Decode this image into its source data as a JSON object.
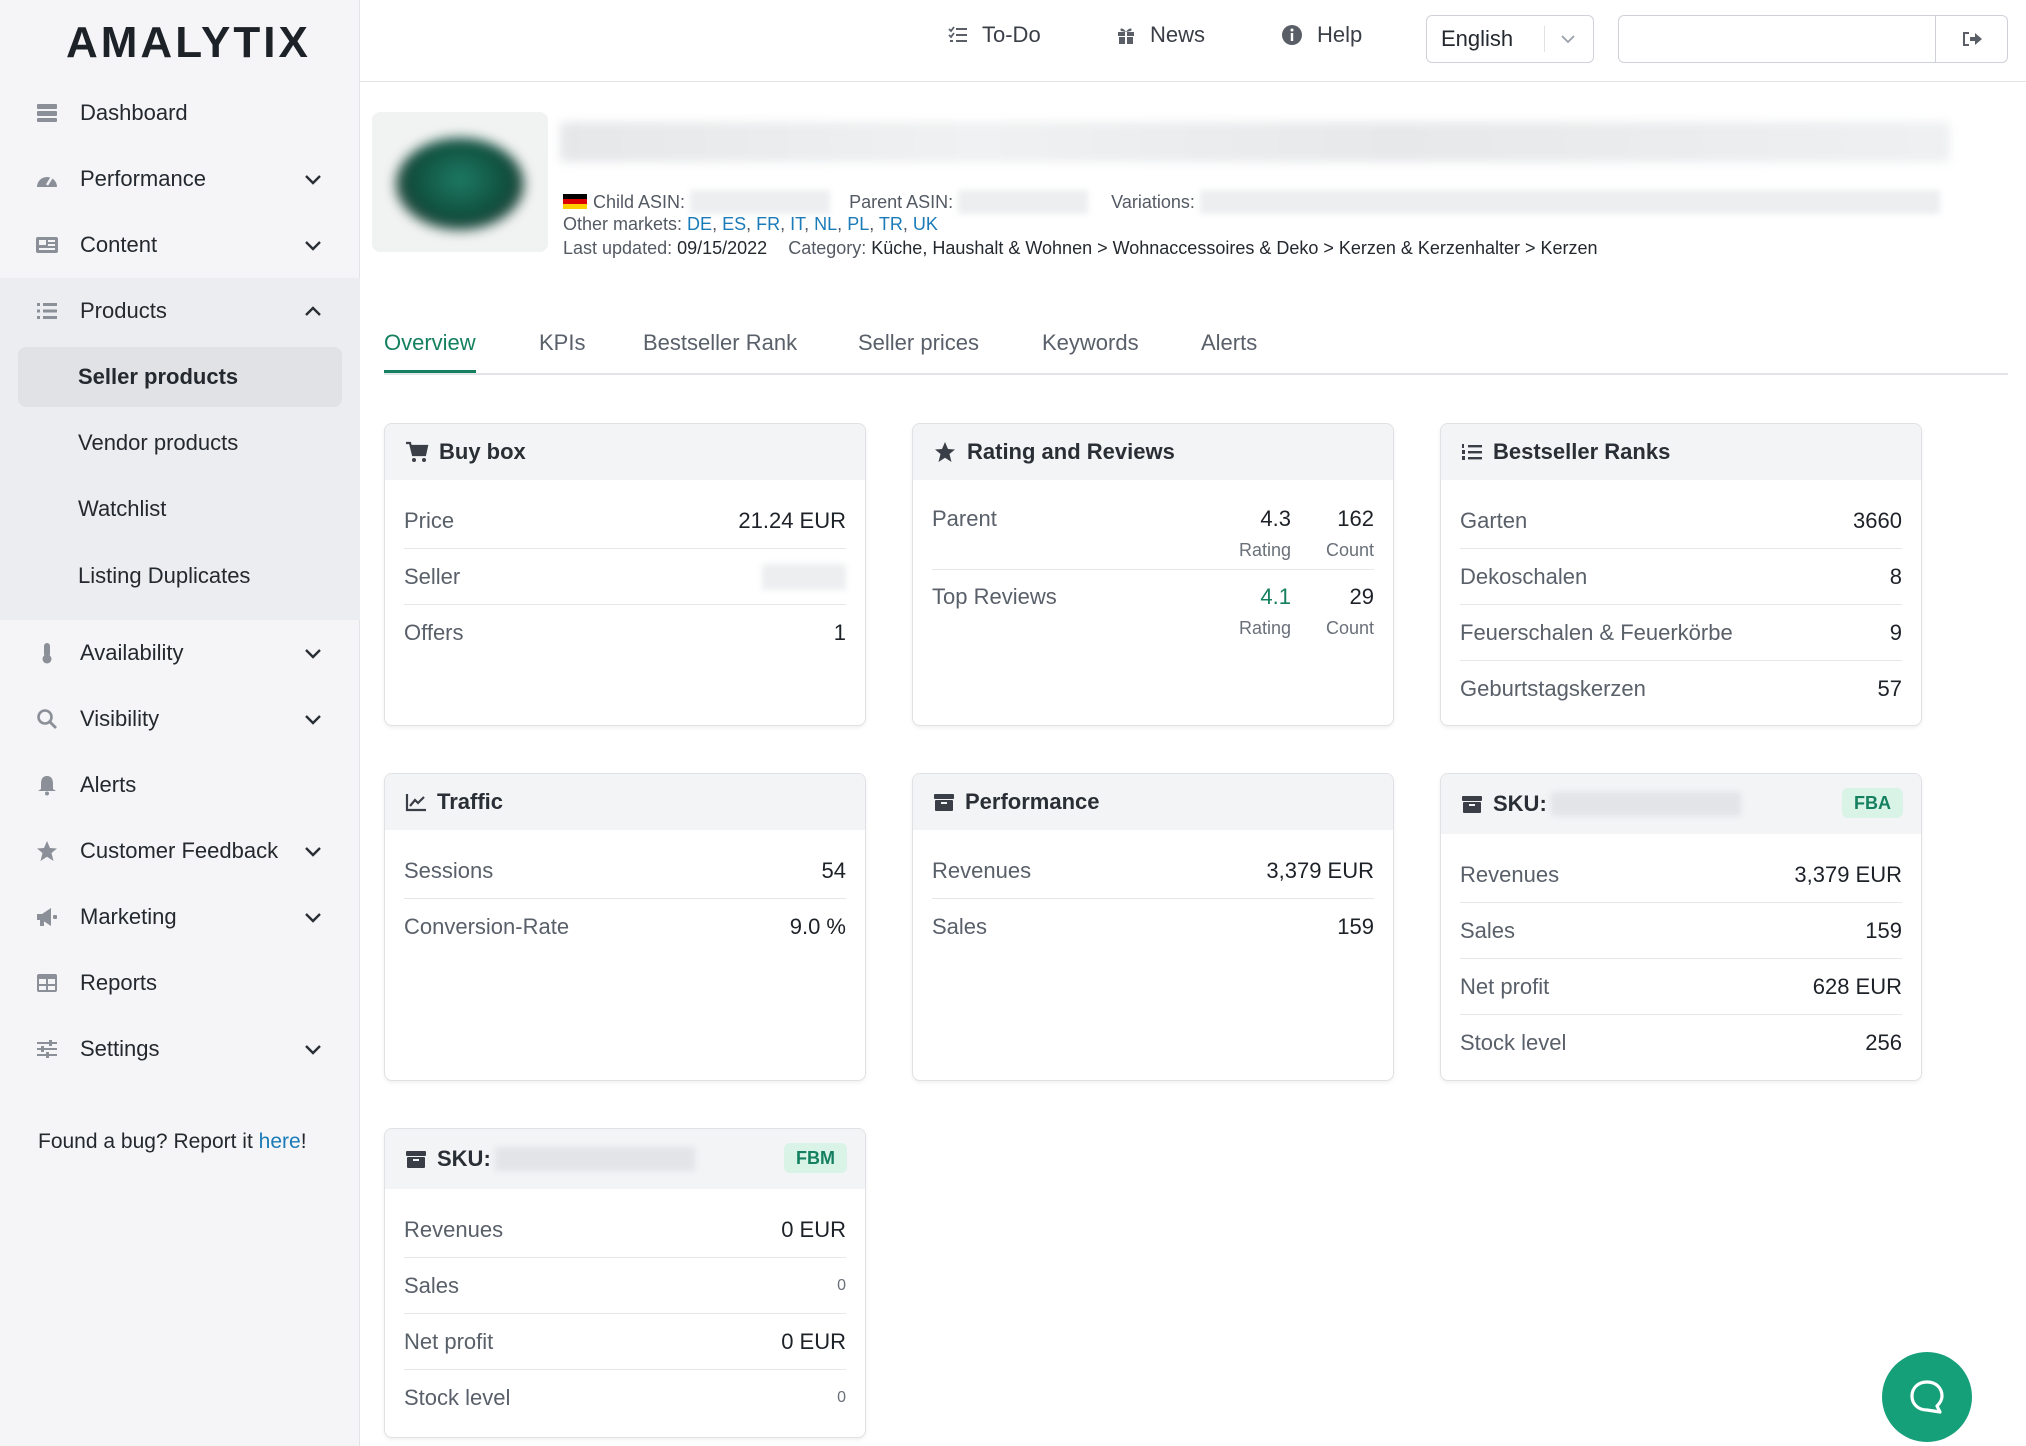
{
  "brand": {
    "logo": "AMALYTIX"
  },
  "topbar": {
    "todo_label": "To-Do",
    "news_label": "News",
    "help_label": "Help",
    "language": "English",
    "search_value": ""
  },
  "sidebar": {
    "dashboard": "Dashboard",
    "performance": "Performance",
    "content": "Content",
    "products": "Products",
    "products_sub": [
      "Seller products",
      "Vendor products",
      "Watchlist",
      "Listing Duplicates"
    ],
    "availability": "Availability",
    "visibility": "Visibility",
    "alerts": "Alerts",
    "customer_feedback": "Customer Feedback",
    "marketing": "Marketing",
    "reports": "Reports",
    "settings": "Settings",
    "bug_text": "Found a bug? Report it ",
    "bug_link": "here",
    "bug_end": "!"
  },
  "product": {
    "child_asin_label": "Child ASIN:",
    "parent_asin_label": "Parent ASIN:",
    "variations_label": "Variations:",
    "other_markets_label": "Other markets:",
    "markets": [
      "DE",
      "ES",
      "FR",
      "IT",
      "NL",
      "PL",
      "TR",
      "UK"
    ],
    "last_updated_label": "Last updated:",
    "last_updated": "09/15/2022",
    "category_label": "Category:",
    "category": "Küche, Haushalt & Wohnen > Wohnaccessoires & Deko > Kerzen & Kerzenhalter > Kerzen"
  },
  "tabs": [
    "Overview",
    "KPIs",
    "Bestseller Rank",
    "Seller prices",
    "Keywords",
    "Alerts"
  ],
  "buybox": {
    "title": "Buy box",
    "price_label": "Price",
    "price": "21.24 EUR",
    "seller_label": "Seller",
    "offers_label": "Offers",
    "offers": "1"
  },
  "rating": {
    "title": "Rating and Reviews",
    "parent_label": "Parent",
    "parent_rating": "4.3",
    "parent_count": "162",
    "top_label": "Top Reviews",
    "top_rating": "4.1",
    "top_count": "29",
    "rating_caption": "Rating",
    "count_caption": "Count"
  },
  "bsr": {
    "title": "Bestseller Ranks",
    "rows": [
      {
        "label": "Garten",
        "value": "3660"
      },
      {
        "label": "Dekoschalen",
        "value": "8"
      },
      {
        "label": "Feuerschalen & Feuerkörbe",
        "value": "9"
      },
      {
        "label": "Geburtstagskerzen",
        "value": "57"
      }
    ]
  },
  "traffic": {
    "title": "Traffic",
    "sessions_label": "Sessions",
    "sessions": "54",
    "cr_label": "Conversion-Rate",
    "cr": "9.0 %"
  },
  "performance": {
    "title": "Performance",
    "revenues_label": "Revenues",
    "revenues": "3,379 EUR",
    "sales_label": "Sales",
    "sales": "159"
  },
  "sku_fba": {
    "title": "SKU:",
    "badge": "FBA",
    "rows": [
      {
        "label": "Revenues",
        "value": "3,379 EUR"
      },
      {
        "label": "Sales",
        "value": "159"
      },
      {
        "label": "Net profit",
        "value": "628 EUR"
      },
      {
        "label": "Stock level",
        "value": "256"
      }
    ]
  },
  "sku_fbm": {
    "title": "SKU:",
    "badge": "FBM",
    "rows": [
      {
        "label": "Revenues",
        "value": "0 EUR"
      },
      {
        "label": "Sales",
        "value": "0"
      },
      {
        "label": "Net profit",
        "value": "0 EUR"
      },
      {
        "label": "Stock level",
        "value": "0"
      }
    ]
  },
  "colors": {
    "accent": "#15805f",
    "link": "#1b7bb8",
    "chat": "#15a07a"
  }
}
